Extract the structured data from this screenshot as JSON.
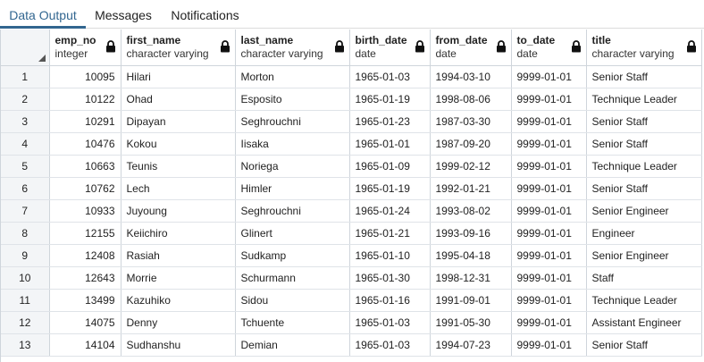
{
  "tabs": [
    {
      "label": "Data Output",
      "active": true
    },
    {
      "label": "Messages",
      "active": false
    },
    {
      "label": "Notifications",
      "active": false
    }
  ],
  "columns": [
    {
      "name": "emp_no",
      "type": "integer"
    },
    {
      "name": "first_name",
      "type": "character varying"
    },
    {
      "name": "last_name",
      "type": "character varying"
    },
    {
      "name": "birth_date",
      "type": "date"
    },
    {
      "name": "from_date",
      "type": "date"
    },
    {
      "name": "to_date",
      "type": "date"
    },
    {
      "name": "title",
      "type": "character varying"
    }
  ],
  "rows": [
    {
      "num": "1",
      "cells": [
        "10095",
        "Hilari",
        "Morton",
        "1965-01-03",
        "1994-03-10",
        "9999-01-01",
        "Senior Staff"
      ]
    },
    {
      "num": "2",
      "cells": [
        "10122",
        "Ohad",
        "Esposito",
        "1965-01-19",
        "1998-08-06",
        "9999-01-01",
        "Technique Leader"
      ]
    },
    {
      "num": "3",
      "cells": [
        "10291",
        "Dipayan",
        "Seghrouchni",
        "1965-01-23",
        "1987-03-30",
        "9999-01-01",
        "Senior Staff"
      ]
    },
    {
      "num": "4",
      "cells": [
        "10476",
        "Kokou",
        "Iisaka",
        "1965-01-01",
        "1987-09-20",
        "9999-01-01",
        "Senior Staff"
      ]
    },
    {
      "num": "5",
      "cells": [
        "10663",
        "Teunis",
        "Noriega",
        "1965-01-09",
        "1999-02-12",
        "9999-01-01",
        "Technique Leader"
      ]
    },
    {
      "num": "6",
      "cells": [
        "10762",
        "Lech",
        "Himler",
        "1965-01-19",
        "1992-01-21",
        "9999-01-01",
        "Senior Staff"
      ]
    },
    {
      "num": "7",
      "cells": [
        "10933",
        "Juyoung",
        "Seghrouchni",
        "1965-01-24",
        "1993-08-02",
        "9999-01-01",
        "Senior Engineer"
      ]
    },
    {
      "num": "8",
      "cells": [
        "12155",
        "Keiichiro",
        "Glinert",
        "1965-01-21",
        "1993-09-16",
        "9999-01-01",
        "Engineer"
      ]
    },
    {
      "num": "9",
      "cells": [
        "12408",
        "Rasiah",
        "Sudkamp",
        "1965-01-10",
        "1995-04-18",
        "9999-01-01",
        "Senior Engineer"
      ]
    },
    {
      "num": "10",
      "cells": [
        "12643",
        "Morrie",
        "Schurmann",
        "1965-01-30",
        "1998-12-31",
        "9999-01-01",
        "Staff"
      ]
    },
    {
      "num": "11",
      "cells": [
        "13499",
        "Kazuhiko",
        "Sidou",
        "1965-01-16",
        "1991-09-01",
        "9999-01-01",
        "Technique Leader"
      ]
    },
    {
      "num": "12",
      "cells": [
        "14075",
        "Denny",
        "Tchuente",
        "1965-01-03",
        "1991-05-30",
        "9999-01-01",
        "Assistant Engineer"
      ]
    },
    {
      "num": "13",
      "cells": [
        "14104",
        "Sudhanshu",
        "Demian",
        "1965-01-03",
        "1994-07-23",
        "9999-01-01",
        "Senior Staff"
      ]
    }
  ],
  "icons": {
    "column_lock": "lock-icon",
    "sort_corner": "sort-corner-icon"
  },
  "colors": {
    "accent": "#326690"
  }
}
